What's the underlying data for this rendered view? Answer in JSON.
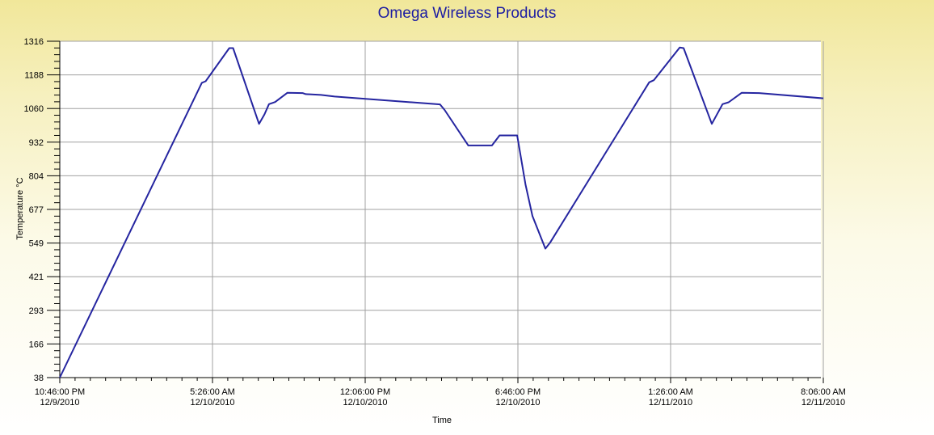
{
  "chart_data": {
    "type": "line",
    "title": "Omega Wireless Products",
    "xlabel": "Time",
    "ylabel": "Temperature °C",
    "ylim": [
      38,
      1316
    ],
    "y_ticks": [
      "1316",
      "1188",
      "1060",
      "932",
      "804",
      "677",
      "549",
      "421",
      "293",
      "166",
      "38"
    ],
    "x_ticks": [
      {
        "time": "10:46:00 PM",
        "date": "12/9/2010"
      },
      {
        "time": "5:26:00 AM",
        "date": "12/10/2010"
      },
      {
        "time": "12:06:00 PM",
        "date": "12/10/2010"
      },
      {
        "time": "6:46:00 PM",
        "date": "12/10/2010"
      },
      {
        "time": "1:26:00 AM",
        "date": "12/11/2010"
      },
      {
        "time": "8:06:00 AM",
        "date": "12/11/2010"
      }
    ],
    "grid": true,
    "colors": {
      "series": "#2525a0",
      "title": "#1c1ca2",
      "grid": "#a0a0a0"
    },
    "series": [
      {
        "values": [
          {
            "x": "2010-12-09 22:46",
            "y": 38
          },
          {
            "x": "2010-12-10 04:58",
            "y": 1158
          },
          {
            "x": "2010-12-10 05:08",
            "y": 1164
          },
          {
            "x": "2010-12-10 06:10",
            "y": 1290
          },
          {
            "x": "2010-12-10 06:20",
            "y": 1290
          },
          {
            "x": "2010-12-10 07:28",
            "y": 1002
          },
          {
            "x": "2010-12-10 07:42",
            "y": 1038
          },
          {
            "x": "2010-12-10 07:54",
            "y": 1077
          },
          {
            "x": "2010-12-10 08:10",
            "y": 1085
          },
          {
            "x": "2010-12-10 08:42",
            "y": 1120
          },
          {
            "x": "2010-12-10 09:22",
            "y": 1119
          },
          {
            "x": "2010-12-10 09:30",
            "y": 1115
          },
          {
            "x": "2010-12-10 10:10",
            "y": 1112
          },
          {
            "x": "2010-12-10 10:46",
            "y": 1106
          },
          {
            "x": "2010-12-10 15:22",
            "y": 1076
          },
          {
            "x": "2010-12-10 15:34",
            "y": 1055
          },
          {
            "x": "2010-12-10 16:36",
            "y": 920
          },
          {
            "x": "2010-12-10 17:38",
            "y": 920
          },
          {
            "x": "2010-12-10 17:58",
            "y": 958
          },
          {
            "x": "2010-12-10 18:44",
            "y": 958
          },
          {
            "x": "2010-12-10 19:06",
            "y": 772
          },
          {
            "x": "2010-12-10 19:24",
            "y": 652
          },
          {
            "x": "2010-12-10 19:58",
            "y": 528
          },
          {
            "x": "2010-12-10 20:10",
            "y": 550
          },
          {
            "x": "2010-12-11 00:30",
            "y": 1160
          },
          {
            "x": "2010-12-11 00:42",
            "y": 1168
          },
          {
            "x": "2010-12-11 01:50",
            "y": 1292
          },
          {
            "x": "2010-12-11 02:00",
            "y": 1290
          },
          {
            "x": "2010-12-11 03:14",
            "y": 1002
          },
          {
            "x": "2010-12-11 03:42",
            "y": 1077
          },
          {
            "x": "2010-12-11 03:58",
            "y": 1084
          },
          {
            "x": "2010-12-11 04:32",
            "y": 1120
          },
          {
            "x": "2010-12-11 05:18",
            "y": 1119
          },
          {
            "x": "2010-12-11 08:06",
            "y": 1099
          }
        ]
      }
    ]
  }
}
